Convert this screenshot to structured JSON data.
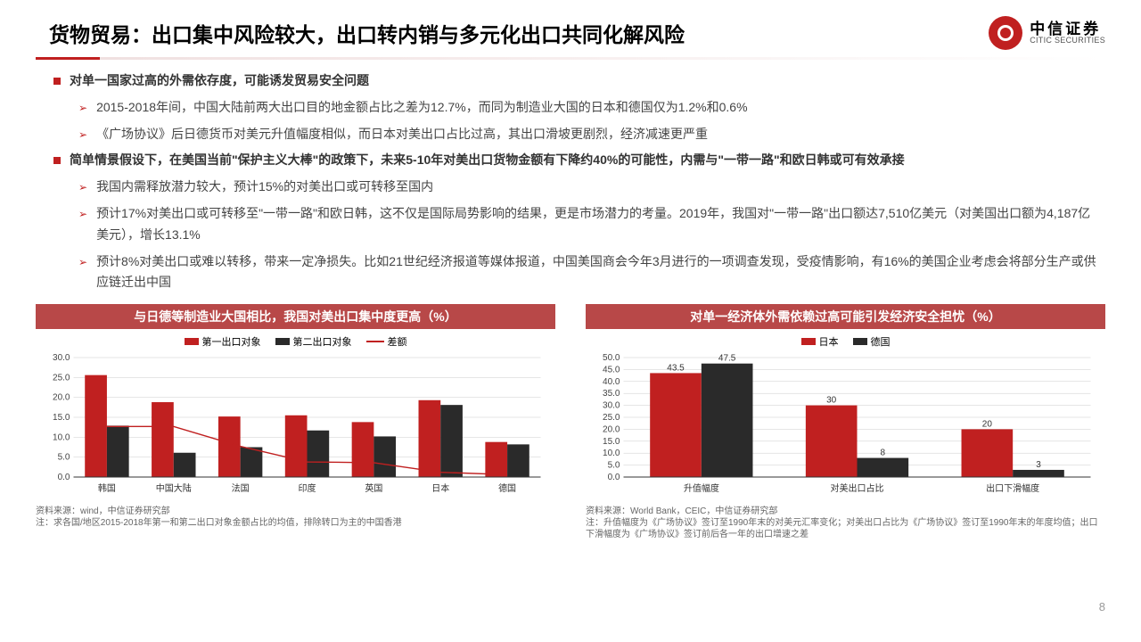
{
  "header": {
    "title": "货物贸易：出口集中风险较大，出口转内销与多元化出口共同化解风险",
    "logo_cn": "中信证券",
    "logo_en": "CITIC SECURITIES"
  },
  "bullets": [
    {
      "type": "main",
      "txt": "对单一国家过高的外需依存度，可能诱发贸易安全问题"
    },
    {
      "type": "sub",
      "txt": "2015-2018年间，中国大陆前两大出口目的地金额占比之差为12.7%，而同为制造业大国的日本和德国仅为1.2%和0.6%"
    },
    {
      "type": "sub",
      "txt": "《广场协议》后日德货币对美元升值幅度相似，而日本对美出口占比过高，其出口滑坡更剧烈，经济减速更严重"
    },
    {
      "type": "main",
      "txt": "简单情景假设下，在美国当前\"保护主义大棒\"的政策下，未来5-10年对美出口货物金额有下降约40%的可能性，内需与\"一带一路\"和欧日韩或可有效承接"
    },
    {
      "type": "sub",
      "txt": "我国内需释放潜力较大，预计15%的对美出口或可转移至国内"
    },
    {
      "type": "sub",
      "txt": "预计17%对美出口或可转移至\"一带一路\"和欧日韩，这不仅是国际局势影响的结果，更是市场潜力的考量。2019年，我国对\"一带一路\"出口额达7,510亿美元（对美国出口额为4,187亿美元），增长13.1%"
    },
    {
      "type": "sub",
      "txt": "预计8%对美出口或难以转移，带来一定净损失。比如21世纪经济报道等媒体报道，中国美国商会今年3月进行的一项调查发现，受疫情影响，有16%的美国企业考虑会将部分生产或供应链迁出中国"
    }
  ],
  "chart_left": {
    "title": "与日德等制造业大国相比，我国对美出口集中度更高（%）",
    "type": "bar+line",
    "legend": [
      "第一出口对象",
      "第二出口对象",
      "差额"
    ],
    "legend_colors": [
      "#c02020",
      "#2a2a2a",
      "#c02020"
    ],
    "categories": [
      "韩国",
      "中国大陆",
      "法国",
      "印度",
      "英国",
      "日本",
      "德国"
    ],
    "series1": [
      25.6,
      18.8,
      15.2,
      15.5,
      13.8,
      19.3,
      8.8
    ],
    "series2": [
      12.9,
      6.1,
      7.5,
      11.7,
      10.2,
      18.1,
      8.2
    ],
    "diff": [
      12.7,
      12.7,
      7.7,
      3.8,
      3.6,
      1.2,
      0.6
    ],
    "ylim": [
      0,
      30
    ],
    "ytick_step": 5,
    "bar_width": 0.33,
    "colors": {
      "s1": "#c02020",
      "s2": "#2a2a2a",
      "line": "#c02020",
      "grid": "#cccccc",
      "axis": "#333"
    },
    "footer1": "资料来源：wind，中信证券研究部",
    "footer2": "注：求各国/地区2015-2018年第一和第二出口对象金额占比的均值，排除转口为主的中国香港"
  },
  "chart_right": {
    "title": "对单一经济体外需依赖过高可能引发经济安全担忧（%）",
    "type": "bar",
    "legend": [
      "日本",
      "德国"
    ],
    "legend_colors": [
      "#c02020",
      "#2a2a2a"
    ],
    "categories": [
      "升值幅度",
      "对美出口占比",
      "出口下滑幅度"
    ],
    "series1": [
      43.5,
      30,
      20
    ],
    "series2": [
      47.5,
      8,
      3
    ],
    "labels1": [
      "43.5",
      "30",
      "20"
    ],
    "labels2": [
      "47.5",
      "8",
      "3"
    ],
    "ylim": [
      0,
      50
    ],
    "ytick_step": 5,
    "bar_width": 0.33,
    "colors": {
      "s1": "#c02020",
      "s2": "#2a2a2a",
      "grid": "#cccccc",
      "axis": "#333"
    },
    "footer1": "资料来源：World Bank，CEIC，中信证券研究部",
    "footer2": "注：升值幅度为《广场协议》签订至1990年末的对美元汇率变化；对美出口占比为《广场协议》签订至1990年末的年度均值；出口下滑幅度为《广场协议》签订前后各一年的出口增速之差"
  },
  "page_number": "8"
}
